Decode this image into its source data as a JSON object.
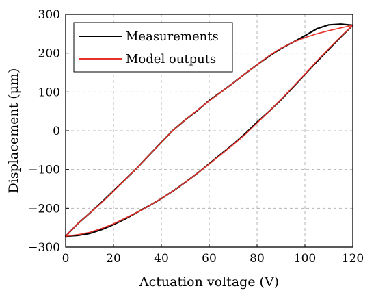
{
  "chart_data": {
    "type": "line",
    "title": "",
    "xlabel": "Actuation voltage (V)",
    "ylabel": "Displacement (μm)",
    "xlim": [
      0,
      120
    ],
    "ylim": [
      -300,
      300
    ],
    "xticks": [
      0,
      20,
      40,
      60,
      80,
      100,
      120
    ],
    "yticks": [
      -300,
      -200,
      -100,
      0,
      100,
      200,
      300
    ],
    "xtick_labels": [
      "0",
      "20",
      "40",
      "60",
      "80",
      "100",
      "120"
    ],
    "ytick_labels": [
      "−300",
      "−200",
      "−100",
      "0",
      "100",
      "200",
      "300"
    ],
    "grid": true,
    "legend_position": "top-left",
    "series": [
      {
        "name": "Measurements",
        "color": "#000000",
        "ascending": {
          "x": [
            0,
            5,
            10,
            15,
            20,
            25,
            30,
            35,
            40,
            45,
            50,
            55,
            60,
            65,
            70,
            75,
            80,
            85,
            90,
            95,
            100,
            105,
            110,
            115,
            120
          ],
          "y": [
            -272,
            -270,
            -265,
            -255,
            -242,
            -227,
            -210,
            -193,
            -175,
            -155,
            -133,
            -110,
            -85,
            -60,
            -35,
            -8,
            22,
            50,
            80,
            112,
            145,
            178,
            210,
            242,
            272
          ]
        },
        "descending": {
          "x": [
            120,
            115,
            110,
            105,
            100,
            95,
            90,
            85,
            80,
            75,
            70,
            65,
            60,
            55,
            50,
            45,
            40,
            35,
            30,
            25,
            20,
            15,
            10,
            5,
            0
          ],
          "y": [
            272,
            275,
            273,
            263,
            245,
            228,
            212,
            192,
            170,
            147,
            123,
            100,
            78,
            52,
            28,
            2,
            -30,
            -62,
            -95,
            -125,
            -155,
            -185,
            -213,
            -240,
            -272
          ]
        }
      },
      {
        "name": "Model outputs",
        "color": "#e8322a",
        "ascending": {
          "x": [
            0,
            5,
            10,
            15,
            20,
            25,
            30,
            35,
            40,
            45,
            50,
            55,
            60,
            65,
            70,
            75,
            80,
            85,
            90,
            95,
            100,
            105,
            110,
            115,
            120
          ],
          "y": [
            -272,
            -268,
            -262,
            -252,
            -240,
            -225,
            -210,
            -193,
            -175,
            -155,
            -133,
            -110,
            -86,
            -61,
            -36,
            -10,
            20,
            50,
            81,
            113,
            146,
            180,
            212,
            243,
            272
          ]
        },
        "descending": {
          "x": [
            120,
            115,
            110,
            105,
            100,
            95,
            90,
            85,
            80,
            75,
            70,
            65,
            60,
            55,
            50,
            45,
            40,
            35,
            30,
            25,
            20,
            15,
            10,
            5,
            0
          ],
          "y": [
            272,
            265,
            258,
            250,
            240,
            228,
            213,
            193,
            170,
            147,
            123,
            100,
            77,
            53,
            28,
            2,
            -30,
            -62,
            -95,
            -125,
            -156,
            -186,
            -213,
            -240,
            -272
          ]
        }
      }
    ]
  }
}
